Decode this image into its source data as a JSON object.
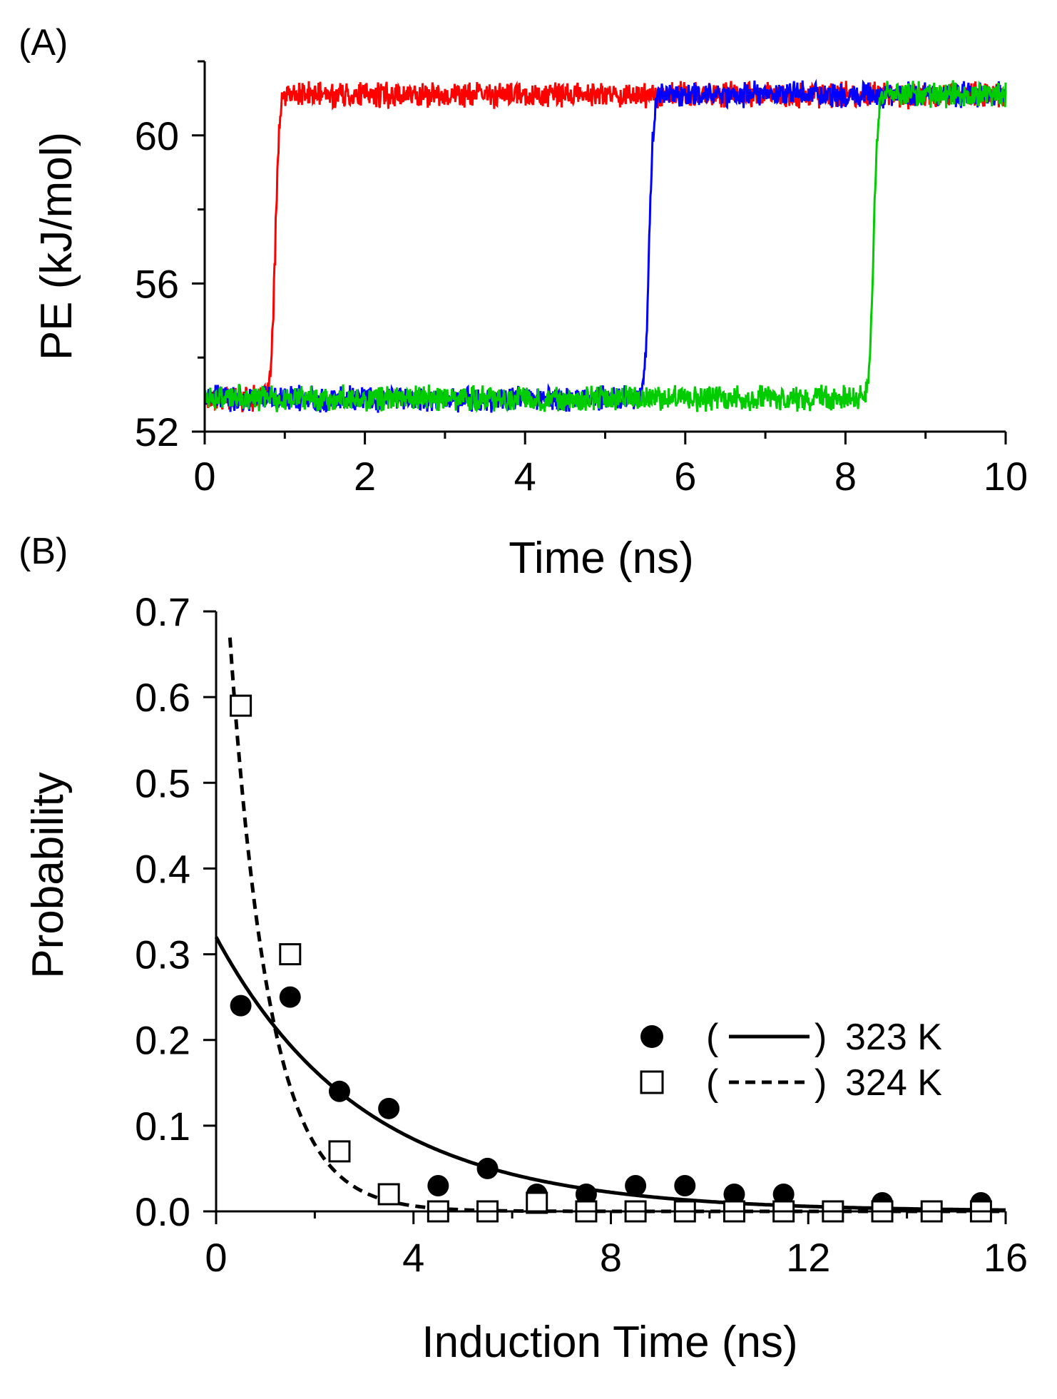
{
  "chart_data": [
    {
      "panel_label": "(A)",
      "type": "line",
      "xlabel": "Time (ns)",
      "ylabel": "PE (kJ/mol)",
      "xlim": [
        0,
        10
      ],
      "ylim": [
        52,
        62
      ],
      "x_ticks": [
        0,
        2,
        4,
        6,
        8,
        10
      ],
      "x_minor_ticks": [
        1,
        3,
        5,
        7,
        9
      ],
      "y_ticks": [
        52,
        56,
        60
      ],
      "y_minor_ticks": [
        54,
        58,
        62
      ],
      "low_level": 52.9,
      "high_level": 61.1,
      "series": [
        {
          "name": "red trajectory",
          "color": "#ff0000",
          "transition_ns": 0.88
        },
        {
          "name": "blue trajectory",
          "color": "#0000ff",
          "transition_ns": 5.55
        },
        {
          "name": "green trajectory",
          "color": "#00cc00",
          "transition_ns": 8.35
        }
      ]
    },
    {
      "panel_label": "(B)",
      "type": "scatter",
      "xlabel": "Induction Time (ns)",
      "ylabel": "Probability",
      "xlim": [
        0,
        16
      ],
      "ylim": [
        0,
        0.7
      ],
      "x_ticks": [
        0,
        4,
        8,
        12,
        16
      ],
      "x_minor_ticks": [
        2,
        6,
        10,
        14
      ],
      "y_ticks": [
        0.0,
        0.1,
        0.2,
        0.3,
        0.4,
        0.5,
        0.6,
        0.7
      ],
      "y_tick_labels": [
        "0.0",
        "0.1",
        "0.2",
        "0.3",
        "0.4",
        "0.5",
        "0.6",
        "0.7"
      ],
      "series": [
        {
          "name": "323 K",
          "marker": "filled-circle",
          "line": "solid",
          "x": [
            0.5,
            1.5,
            2.5,
            3.5,
            4.5,
            5.5,
            6.5,
            7.5,
            8.5,
            9.5,
            10.5,
            11.5,
            12.5,
            13.5,
            14.5,
            15.5
          ],
          "y": [
            0.24,
            0.25,
            0.14,
            0.12,
            0.03,
            0.05,
            0.02,
            0.02,
            0.03,
            0.03,
            0.02,
            0.02,
            0.0,
            0.01,
            0.0,
            0.01
          ],
          "fit": {
            "form": "a*exp(-x/tau)",
            "a": 0.32,
            "tau": 3.0
          }
        },
        {
          "name": "324 K",
          "marker": "open-square",
          "line": "dashed",
          "x": [
            0.5,
            1.5,
            2.5,
            3.5,
            4.5,
            5.5,
            6.5,
            7.5,
            8.5,
            9.5,
            10.5,
            11.5,
            12.5,
            13.5,
            14.5,
            15.5
          ],
          "y": [
            0.59,
            0.3,
            0.07,
            0.02,
            0.0,
            0.0,
            0.01,
            0.0,
            0.0,
            0.0,
            0.0,
            0.0,
            0.0,
            0.0,
            0.0,
            0.0
          ],
          "fit": {
            "form": "a*exp(-x/tau)",
            "a": 0.95,
            "tau": 0.8
          }
        }
      ],
      "legend": {
        "position": "right-middle",
        "entries": [
          {
            "symbol_open": "(",
            "symbol_close": ")",
            "label": "323 K"
          },
          {
            "symbol_open": "(",
            "symbol_close": ")",
            "label": "324 K"
          }
        ]
      }
    }
  ]
}
